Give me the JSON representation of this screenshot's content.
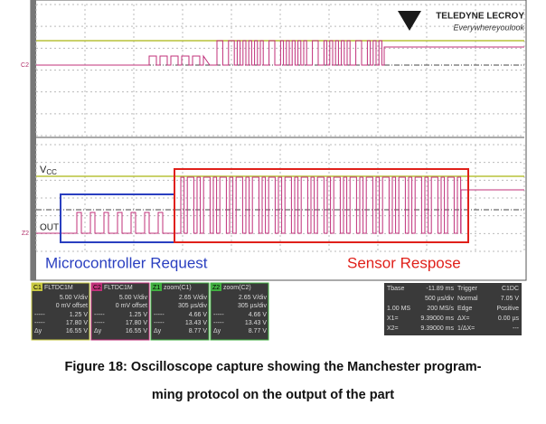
{
  "logo": {
    "brand": "TELEDYNE LECROY",
    "tagline": "Everywhereyoulook"
  },
  "top_panel": {
    "channel_tag": "C2"
  },
  "bottom_panel": {
    "vcc_label": "V",
    "vcc_sub": "CC",
    "out_label": "OUT",
    "channel_tag": "Z2"
  },
  "annotations": {
    "request": "Microcontroller Request",
    "response": "Sensor Respose"
  },
  "channels": [
    {
      "tag": "C1",
      "mode": "FLTDC1M",
      "scale": "5.00 V/div",
      "offset": "0 mV offset",
      "rows": [
        {
          "label": "-----",
          "value": "1.25 V"
        },
        {
          "label": "-----",
          "value": "17.80 V"
        },
        {
          "label": "Δy",
          "value": "16.55 V"
        }
      ]
    },
    {
      "tag": "C2",
      "mode": "FLTDC1M",
      "scale": "5.00 V/div",
      "offset": "0 mV offset",
      "rows": [
        {
          "label": "-----",
          "value": "1.25 V"
        },
        {
          "label": "-----",
          "value": "17.80 V"
        },
        {
          "label": "Δy",
          "value": "16.55 V"
        }
      ]
    },
    {
      "tag": "Z1",
      "mode": "zoom(C1)",
      "scale": "2.65 V/div",
      "offset": "305 µs/div",
      "rows": [
        {
          "label": "-----",
          "value": "4.66 V"
        },
        {
          "label": "-----",
          "value": "13.43 V"
        },
        {
          "label": "Δy",
          "value": "8.77 V"
        }
      ]
    },
    {
      "tag": "Z2",
      "mode": "zoom(C2)",
      "scale": "2.65 V/div",
      "offset": "305 µs/div",
      "rows": [
        {
          "label": "-----",
          "value": "4.66 V"
        },
        {
          "label": "-----",
          "value": "13.43 V"
        },
        {
          "label": "Δy",
          "value": "8.77 V"
        }
      ]
    }
  ],
  "timebase": [
    {
      "k1": "Tbase",
      "v1": "-11.89 ms",
      "k2": "Trigger",
      "v2": "C1DC"
    },
    {
      "v1": "500 µs/div",
      "k2": "Normal",
      "v2": "7.05 V"
    },
    {
      "k1": "1.00 MS",
      "v1": "200 MS/s",
      "k2": "Edge",
      "v2": "Positive"
    },
    {
      "k1": "X1=",
      "v1": "9.39000 ms",
      "k2": "ΔX=",
      "v2": "0.00 µs"
    },
    {
      "k1": "X2=",
      "v1": "9.39000 ms",
      "k2": "1/ΔX=",
      "v2": "---"
    }
  ],
  "caption": {
    "line1": "Figure 18: Oscilloscope capture showing the Manchester program-",
    "line2": "ming protocol on the output of the part"
  }
}
